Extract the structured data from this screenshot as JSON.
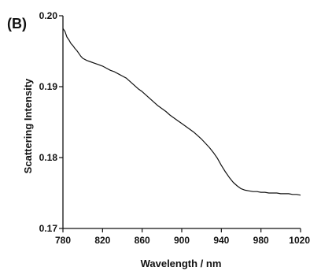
{
  "chart_data": {
    "type": "line",
    "panel_label": "(B)",
    "xlabel": "Wavelength / nm",
    "ylabel": "Scattering Intensity",
    "xlim": [
      780,
      1020
    ],
    "ylim": [
      0.17,
      0.2
    ],
    "x_ticks": [
      780,
      820,
      860,
      900,
      940,
      980,
      1020
    ],
    "x_tick_labels": [
      "780",
      "820",
      "860",
      "900",
      "940",
      "980",
      "1020"
    ],
    "y_ticks": [
      0.17,
      0.18,
      0.19,
      0.2
    ],
    "y_tick_labels": [
      "0.17",
      "0.18",
      "0.19",
      "0.20"
    ],
    "grid": false,
    "series": [
      {
        "x": [
          780,
          782,
          784,
          786,
          788,
          790,
          792,
          794,
          796,
          798,
          800,
          804,
          808,
          812,
          816,
          820,
          824,
          828,
          832,
          836,
          840,
          844,
          848,
          852,
          856,
          860,
          864,
          868,
          872,
          876,
          880,
          884,
          888,
          892,
          896,
          900,
          904,
          908,
          912,
          916,
          920,
          924,
          928,
          932,
          936,
          940,
          944,
          948,
          952,
          956,
          960,
          964,
          968,
          972,
          976,
          980,
          984,
          988,
          992,
          996,
          1000,
          1004,
          1008,
          1012,
          1016,
          1020
        ],
        "y": [
          0.1982,
          0.1978,
          0.197,
          0.1966,
          0.1961,
          0.1958,
          0.1954,
          0.1951,
          0.1947,
          0.1943,
          0.194,
          0.1937,
          0.1935,
          0.1933,
          0.1931,
          0.1929,
          0.1926,
          0.1923,
          0.1921,
          0.1918,
          0.1915,
          0.1912,
          0.1907,
          0.1902,
          0.1897,
          0.1893,
          0.1888,
          0.1883,
          0.1878,
          0.1873,
          0.1869,
          0.1865,
          0.186,
          0.1856,
          0.1852,
          0.1848,
          0.1844,
          0.184,
          0.1836,
          0.1831,
          0.1826,
          0.182,
          0.1814,
          0.1807,
          0.1799,
          0.1789,
          0.178,
          0.1772,
          0.1765,
          0.176,
          0.1756,
          0.1754,
          0.1753,
          0.1752,
          0.1752,
          0.1751,
          0.1751,
          0.175,
          0.175,
          0.175,
          0.1749,
          0.1749,
          0.1749,
          0.1748,
          0.1748,
          0.1747
        ]
      }
    ],
    "line_color": "#111111"
  }
}
